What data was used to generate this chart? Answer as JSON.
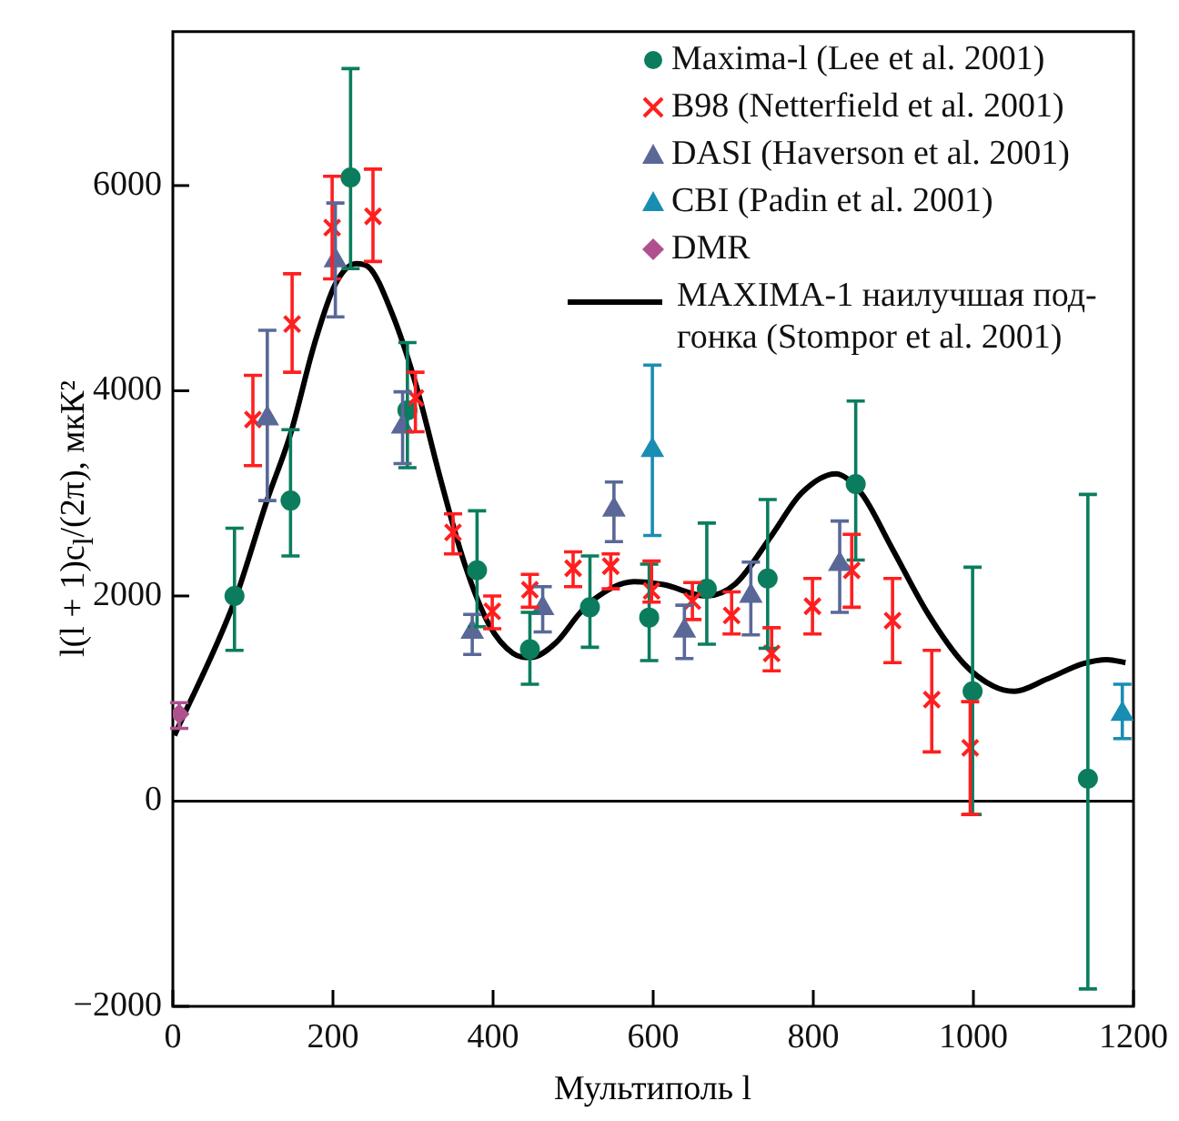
{
  "chart_data": {
    "type": "scatter",
    "xlabel": "Мультиполь l",
    "ylabel": "l(l + 1)c$_{l}$/(2π), мкК²",
    "xlim": [
      0,
      1200
    ],
    "xticks": [
      0,
      200,
      400,
      600,
      800,
      1000,
      1200
    ],
    "ylim": [
      -2000,
      7500
    ],
    "yticks": [
      -2000,
      0,
      2000,
      4000,
      6000
    ],
    "grid": false,
    "legend": "top right",
    "ref_lines": [
      {
        "axis": "y",
        "value": 0,
        "color": "#000000"
      }
    ],
    "series": [
      {
        "name": "Maxima-l (Lee et al. 2001)",
        "color": "#0b7d5e",
        "marker": "circle",
        "x": [
          77,
          147,
          222,
          293,
          380,
          446,
          521,
          595,
          667,
          743,
          853,
          999,
          1143
        ],
        "values": [
          2000,
          2930,
          6080,
          3810,
          2250,
          1480,
          1890,
          1790,
          2070,
          2170,
          3090,
          1070,
          220
        ],
        "errors": [
          [
            1470,
            2660
          ],
          [
            2390,
            3620
          ],
          [
            5190,
            7140
          ],
          [
            3250,
            4470
          ],
          [
            1700,
            2830
          ],
          [
            1140,
            1840
          ],
          [
            1500,
            2390
          ],
          [
            1370,
            2310
          ],
          [
            1530,
            2710
          ],
          [
            1490,
            2940
          ],
          [
            2350,
            3900
          ],
          [
            -130,
            2280
          ],
          [
            -1830,
            2990
          ]
        ]
      },
      {
        "name": "B98 (Netterfield et al. 2001)",
        "color": "#ff1f1f",
        "marker": "cross",
        "x": [
          100,
          149,
          199,
          250,
          303,
          350,
          399,
          446,
          500,
          547,
          598,
          649,
          698,
          748,
          799,
          848,
          899,
          948,
          996
        ],
        "values": [
          3720,
          4650,
          5590,
          5700,
          3930,
          2620,
          1850,
          2060,
          2270,
          2290,
          2050,
          1950,
          1810,
          1440,
          1900,
          2250,
          1760,
          990,
          520
        ],
        "errors": [
          [
            3270,
            4150
          ],
          [
            4180,
            5140
          ],
          [
            5090,
            6090
          ],
          [
            5260,
            6160
          ],
          [
            3600,
            4180
          ],
          [
            2410,
            2800
          ],
          [
            1680,
            2000
          ],
          [
            1890,
            2210
          ],
          [
            2090,
            2430
          ],
          [
            2070,
            2410
          ],
          [
            1940,
            2340
          ],
          [
            1770,
            2130
          ],
          [
            1630,
            2040
          ],
          [
            1270,
            1690
          ],
          [
            1630,
            2170
          ],
          [
            1890,
            2600
          ],
          [
            1350,
            2170
          ],
          [
            480,
            1470
          ],
          [
            -130,
            970
          ]
        ]
      },
      {
        "name": "DASI (Haverson et al. 2001)",
        "color": "#5a6898",
        "marker": "triangle",
        "x": [
          118,
          203,
          287,
          374,
          462,
          551,
          639,
          722,
          833
        ],
        "values": [
          3730,
          5270,
          3650,
          1650,
          1880,
          2840,
          1660,
          2000,
          2310
        ],
        "errors": [
          [
            2930,
            4590
          ],
          [
            4720,
            5830
          ],
          [
            3290,
            3990
          ],
          [
            1430,
            1820
          ],
          [
            1650,
            2090
          ],
          [
            2530,
            3110
          ],
          [
            1390,
            1910
          ],
          [
            1620,
            2330
          ],
          [
            1840,
            2730
          ]
        ]
      },
      {
        "name": "CBI (Padin et al. 2001)",
        "color": "#1a8db2",
        "marker": "triangle",
        "x": [
          599,
          1186
        ],
        "values": [
          3420,
          850
        ],
        "errors": [
          [
            2590,
            4250
          ],
          [
            610,
            1140
          ]
        ]
      },
      {
        "name": "DMR",
        "color": "#b0508e",
        "marker": "diamond",
        "x": [
          8
        ],
        "values": [
          850
        ],
        "errors": [
          [
            710,
            960
          ]
        ]
      },
      {
        "name": "MAXIMA-1 наилучшая под-гонка (Stompor et al. 2001)",
        "type": "line",
        "color": "#000000",
        "marker": "none",
        "line_style": "solid",
        "x": [
          2,
          77,
          118,
          147,
          177,
          203,
          229,
          244,
          274,
          304,
          335,
          365,
          395,
          425,
          447,
          478,
          508,
          523,
          576,
          613,
          666,
          703,
          748,
          785,
          828,
          860,
          898,
          943,
          988,
          1025,
          1051,
          1092,
          1137,
          1167,
          1190
        ],
        "values": [
          640,
          1950,
          2940,
          3580,
          4460,
          5040,
          5240,
          5210,
          4750,
          4050,
          3120,
          2300,
          1720,
          1440,
          1400,
          1540,
          1830,
          1950,
          2140,
          2110,
          2000,
          2120,
          2590,
          3000,
          3190,
          3000,
          2470,
          1830,
          1340,
          1120,
          1070,
          1190,
          1340,
          1380,
          1350
        ]
      }
    ]
  }
}
